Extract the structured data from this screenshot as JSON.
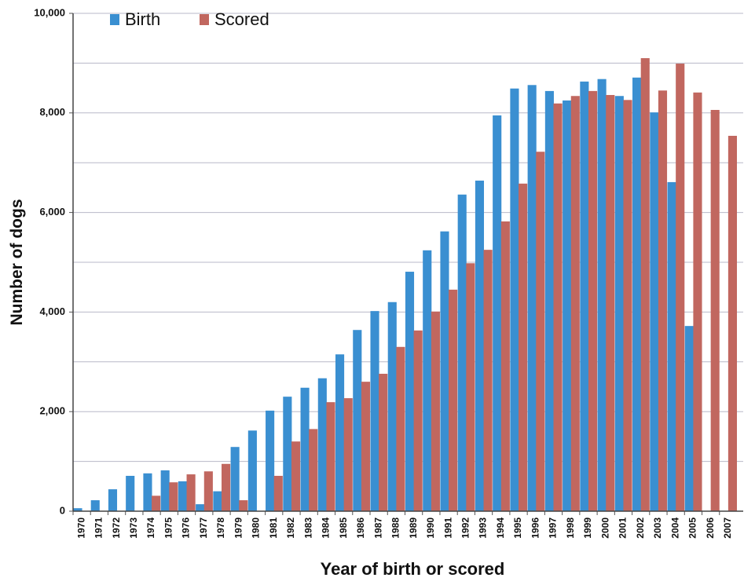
{
  "chart_data": {
    "type": "bar",
    "x_label": "Year of birth or scored",
    "y_label": "Number of dogs",
    "categories": [
      "1970",
      "1971",
      "1972",
      "1973",
      "1974",
      "1975",
      "1976",
      "1977",
      "1978",
      "1979",
      "1980",
      "1981",
      "1982",
      "1983",
      "1984",
      "1985",
      "1986",
      "1987",
      "1988",
      "1989",
      "1990",
      "1991",
      "1992",
      "1993",
      "1994",
      "1995",
      "1996",
      "1997",
      "1998",
      "1999",
      "2000",
      "2001",
      "2002",
      "2003",
      "2004",
      "2005",
      "2006",
      "2007"
    ],
    "series": [
      {
        "name": "Birth",
        "color": "#3a8fd1",
        "values": [
          60,
          220,
          440,
          710,
          760,
          820,
          600,
          140,
          400,
          1290,
          1620,
          2020,
          2300,
          2480,
          2670,
          3150,
          3640,
          4020,
          4200,
          4810,
          5240,
          5620,
          6360,
          6640,
          7950,
          8490,
          8560,
          8440,
          8250,
          8630,
          8680,
          8340,
          8710,
          8010,
          6610,
          3720,
          null,
          null
        ]
      },
      {
        "name": "Scored",
        "color": "#c1675f",
        "values": [
          null,
          null,
          null,
          null,
          310,
          580,
          740,
          800,
          950,
          220,
          null,
          710,
          1400,
          1650,
          2190,
          2270,
          2600,
          2760,
          3300,
          3630,
          4010,
          4450,
          4980,
          5250,
          5820,
          6580,
          7220,
          8190,
          8340,
          8440,
          8360,
          8260,
          9100,
          8450,
          8990,
          8410,
          8060,
          7540
        ]
      }
    ],
    "ylim": [
      0,
      10000
    ],
    "yticks": [
      0,
      {
        "value": 2000,
        "label": "2,000"
      },
      {
        "value": 4000,
        "label": "4,000"
      },
      {
        "value": 6000,
        "label": "6,000"
      },
      {
        "value": 8000,
        "label": "8,000"
      },
      {
        "value": 10000,
        "label": "10,000"
      }
    ],
    "minor_yticks": [
      1000,
      3000,
      5000,
      7000,
      9000
    ],
    "grid": true,
    "legend": "top-left"
  }
}
